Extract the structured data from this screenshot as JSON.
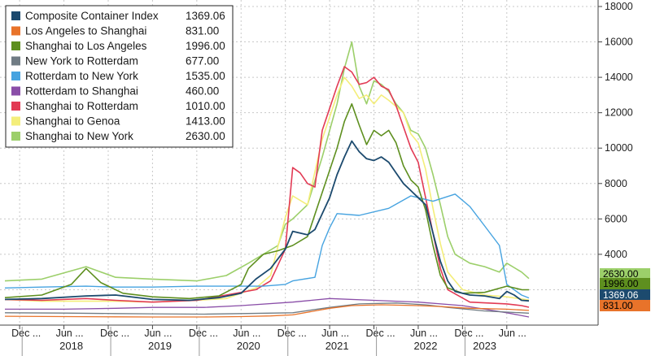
{
  "chart_data": {
    "type": "line",
    "title": "",
    "xlabel": "",
    "ylabel": "",
    "ylim": [
      0,
      18000
    ],
    "yticks": [
      4000,
      6000,
      8000,
      10000,
      12000,
      14000,
      16000,
      18000
    ],
    "y_axis_side": "right",
    "grid": true,
    "legend_position": "top-left",
    "x_range": [
      "2017-10",
      "2023-09"
    ],
    "x_month_labels": [
      {
        "date": "2017-12",
        "label": "Dec ..."
      },
      {
        "date": "2018-06",
        "label": "Jun ..."
      },
      {
        "date": "2018-12",
        "label": "Dec ..."
      },
      {
        "date": "2019-06",
        "label": "Jun ..."
      },
      {
        "date": "2019-12",
        "label": "Dec ..."
      },
      {
        "date": "2020-06",
        "label": "Jun ..."
      },
      {
        "date": "2020-12",
        "label": "Dec ..."
      },
      {
        "date": "2021-06",
        "label": "Jun ..."
      },
      {
        "date": "2021-12",
        "label": "Dec ..."
      },
      {
        "date": "2022-06",
        "label": "Jun ..."
      },
      {
        "date": "2022-12",
        "label": "Dec ..."
      },
      {
        "date": "2023-06",
        "label": "Jun ..."
      }
    ],
    "x_year_labels": [
      {
        "date": "2018-07",
        "label": "2018"
      },
      {
        "date": "2019-07",
        "label": "2019"
      },
      {
        "date": "2020-07",
        "label": "2020"
      },
      {
        "date": "2021-07",
        "label": "2021"
      },
      {
        "date": "2022-07",
        "label": "2022"
      },
      {
        "date": "2023-03",
        "label": "2023"
      }
    ],
    "year_separators": [
      "2018-01",
      "2019-01",
      "2020-01",
      "2021-01",
      "2022-01",
      "2023-01"
    ],
    "end_labels": [
      {
        "text": "2630.00",
        "bg": "#9ccf6a",
        "fg": "#000000"
      },
      {
        "text": "1996.00",
        "bg": "#5e8f1f",
        "fg": "#000000"
      },
      {
        "text": "1369.06",
        "bg": "#1c4a6e",
        "fg": "#ffffff"
      },
      {
        "text": "831.00",
        "bg": "#e8732a",
        "fg": "#000000"
      }
    ],
    "series": [
      {
        "name": "Composite Container Index",
        "value": "1369.06",
        "color": "#1c4a6e",
        "width": 1.8,
        "points": [
          [
            "2017-10",
            1450
          ],
          [
            "2018-03",
            1500
          ],
          [
            "2018-09",
            1650
          ],
          [
            "2019-01",
            1700
          ],
          [
            "2019-06",
            1450
          ],
          [
            "2019-11",
            1400
          ],
          [
            "2020-03",
            1550
          ],
          [
            "2020-06",
            1800
          ],
          [
            "2020-08",
            2600
          ],
          [
            "2020-10",
            3200
          ],
          [
            "2020-12",
            4300
          ],
          [
            "2021-01",
            5300
          ],
          [
            "2021-03",
            5100
          ],
          [
            "2021-04",
            5400
          ],
          [
            "2021-06",
            7200
          ],
          [
            "2021-07",
            8500
          ],
          [
            "2021-08",
            9500
          ],
          [
            "2021-09",
            10400
          ],
          [
            "2021-10",
            9800
          ],
          [
            "2021-11",
            9400
          ],
          [
            "2021-12",
            9300
          ],
          [
            "2022-01",
            9500
          ],
          [
            "2022-02",
            9200
          ],
          [
            "2022-03",
            8600
          ],
          [
            "2022-04",
            8000
          ],
          [
            "2022-05",
            7600
          ],
          [
            "2022-06",
            7200
          ],
          [
            "2022-07",
            6800
          ],
          [
            "2022-08",
            5200
          ],
          [
            "2022-09",
            3600
          ],
          [
            "2022-10",
            2500
          ],
          [
            "2022-11",
            1900
          ],
          [
            "2023-01",
            1700
          ],
          [
            "2023-03",
            1650
          ],
          [
            "2023-05",
            1500
          ],
          [
            "2023-06",
            1900
          ],
          [
            "2023-07",
            1700
          ],
          [
            "2023-08",
            1400
          ],
          [
            "2023-09",
            1369
          ]
        ]
      },
      {
        "name": "Los Angeles to Shanghai",
        "value": "831.00",
        "color": "#e8732a",
        "width": 1.3,
        "points": [
          [
            "2017-10",
            500
          ],
          [
            "2018-06",
            480
          ],
          [
            "2019-01",
            470
          ],
          [
            "2019-06",
            460
          ],
          [
            "2020-01",
            460
          ],
          [
            "2020-06",
            480
          ],
          [
            "2020-10",
            520
          ],
          [
            "2021-01",
            580
          ],
          [
            "2021-06",
            950
          ],
          [
            "2021-09",
            1100
          ],
          [
            "2022-01",
            1150
          ],
          [
            "2022-06",
            1100
          ],
          [
            "2022-09",
            1050
          ],
          [
            "2023-01",
            950
          ],
          [
            "2023-06",
            900
          ],
          [
            "2023-09",
            831
          ]
        ]
      },
      {
        "name": "Shanghai to Los Angeles",
        "value": "1996.00",
        "color": "#5e8f1f",
        "width": 1.6,
        "points": [
          [
            "2017-10",
            1550
          ],
          [
            "2018-03",
            1700
          ],
          [
            "2018-07",
            2300
          ],
          [
            "2018-09",
            3200
          ],
          [
            "2018-11",
            2400
          ],
          [
            "2019-02",
            1800
          ],
          [
            "2019-06",
            1600
          ],
          [
            "2019-11",
            1500
          ],
          [
            "2020-03",
            1650
          ],
          [
            "2020-06",
            2300
          ],
          [
            "2020-07",
            3200
          ],
          [
            "2020-09",
            4000
          ],
          [
            "2020-11",
            4200
          ],
          [
            "2021-01",
            4500
          ],
          [
            "2021-03",
            5000
          ],
          [
            "2021-05",
            7500
          ],
          [
            "2021-07",
            10000
          ],
          [
            "2021-08",
            11500
          ],
          [
            "2021-09",
            12500
          ],
          [
            "2021-10",
            11300
          ],
          [
            "2021-11",
            10200
          ],
          [
            "2021-12",
            11000
          ],
          [
            "2022-01",
            10700
          ],
          [
            "2022-02",
            11000
          ],
          [
            "2022-03",
            10300
          ],
          [
            "2022-04",
            9000
          ],
          [
            "2022-05",
            8200
          ],
          [
            "2022-06",
            7800
          ],
          [
            "2022-07",
            6500
          ],
          [
            "2022-08",
            4500
          ],
          [
            "2022-09",
            2800
          ],
          [
            "2022-10",
            2100
          ],
          [
            "2022-12",
            1800
          ],
          [
            "2023-03",
            1850
          ],
          [
            "2023-06",
            2200
          ],
          [
            "2023-08",
            2000
          ],
          [
            "2023-09",
            1996
          ]
        ]
      },
      {
        "name": "New York to Rotterdam",
        "value": "677.00",
        "color": "#707c84",
        "width": 1.3,
        "points": [
          [
            "2017-10",
            700
          ],
          [
            "2018-06",
            680
          ],
          [
            "2019-01",
            650
          ],
          [
            "2019-06",
            640
          ],
          [
            "2020-01",
            620
          ],
          [
            "2020-06",
            650
          ],
          [
            "2021-01",
            700
          ],
          [
            "2021-06",
            1000
          ],
          [
            "2021-10",
            1200
          ],
          [
            "2022-03",
            1250
          ],
          [
            "2022-07",
            1150
          ],
          [
            "2022-10",
            1000
          ],
          [
            "2023-03",
            800
          ],
          [
            "2023-09",
            677
          ]
        ]
      },
      {
        "name": "Rotterdam to New York",
        "value": "1535.00",
        "color": "#46a3e0",
        "width": 1.4,
        "points": [
          [
            "2017-10",
            2100
          ],
          [
            "2018-03",
            2150
          ],
          [
            "2018-09",
            2200
          ],
          [
            "2019-01",
            2150
          ],
          [
            "2019-06",
            2150
          ],
          [
            "2019-12",
            2200
          ],
          [
            "2020-04",
            2200
          ],
          [
            "2020-09",
            2200
          ],
          [
            "2020-12",
            2300
          ],
          [
            "2021-01",
            2500
          ],
          [
            "2021-04",
            2700
          ],
          [
            "2021-05",
            4500
          ],
          [
            "2021-06",
            5500
          ],
          [
            "2021-07",
            6300
          ],
          [
            "2021-10",
            6200
          ],
          [
            "2022-02",
            6600
          ],
          [
            "2022-05",
            7300
          ],
          [
            "2022-08",
            7000
          ],
          [
            "2022-11",
            7400
          ],
          [
            "2023-01",
            6700
          ],
          [
            "2023-03",
            5600
          ],
          [
            "2023-05",
            4500
          ],
          [
            "2023-06",
            2300
          ],
          [
            "2023-08",
            1700
          ],
          [
            "2023-09",
            1535
          ]
        ]
      },
      {
        "name": "Rotterdam to Shanghai",
        "value": "460.00",
        "color": "#8a4ea8",
        "width": 1.3,
        "points": [
          [
            "2017-10",
            900
          ],
          [
            "2018-06",
            900
          ],
          [
            "2019-01",
            950
          ],
          [
            "2019-06",
            1000
          ],
          [
            "2020-01",
            1000
          ],
          [
            "2020-06",
            1100
          ],
          [
            "2021-01",
            1300
          ],
          [
            "2021-06",
            1500
          ],
          [
            "2021-12",
            1400
          ],
          [
            "2022-06",
            1300
          ],
          [
            "2022-12",
            1100
          ],
          [
            "2023-06",
            700
          ],
          [
            "2023-09",
            460
          ]
        ]
      },
      {
        "name": "Shanghai to Rotterdam",
        "value": "1010.00",
        "color": "#e23a54",
        "width": 1.6,
        "points": [
          [
            "2017-10",
            1450
          ],
          [
            "2018-03",
            1400
          ],
          [
            "2018-09",
            1500
          ],
          [
            "2019-01",
            1400
          ],
          [
            "2019-06",
            1300
          ],
          [
            "2019-12",
            1400
          ],
          [
            "2020-04",
            1700
          ],
          [
            "2020-08",
            2000
          ],
          [
            "2020-10",
            2500
          ],
          [
            "2020-12",
            4300
          ],
          [
            "2021-01",
            8900
          ],
          [
            "2021-02",
            8600
          ],
          [
            "2021-03",
            8000
          ],
          [
            "2021-04",
            7800
          ],
          [
            "2021-05",
            11000
          ],
          [
            "2021-07",
            13500
          ],
          [
            "2021-08",
            14600
          ],
          [
            "2021-09",
            14300
          ],
          [
            "2021-10",
            13600
          ],
          [
            "2021-11",
            13700
          ],
          [
            "2021-12",
            14000
          ],
          [
            "2022-01",
            13500
          ],
          [
            "2022-02",
            13300
          ],
          [
            "2022-03",
            12400
          ],
          [
            "2022-04",
            11200
          ],
          [
            "2022-05",
            10000
          ],
          [
            "2022-06",
            9200
          ],
          [
            "2022-07",
            7200
          ],
          [
            "2022-08",
            5200
          ],
          [
            "2022-09",
            3200
          ],
          [
            "2022-10",
            2000
          ],
          [
            "2023-01",
            1300
          ],
          [
            "2023-06",
            1200
          ],
          [
            "2023-08",
            1100
          ],
          [
            "2023-09",
            1010
          ]
        ]
      },
      {
        "name": "Shanghai to Genoa",
        "value": "1413.00",
        "color": "#f4ee7a",
        "width": 1.6,
        "points": [
          [
            "2017-10",
            1450
          ],
          [
            "2018-03",
            1350
          ],
          [
            "2018-09",
            1350
          ],
          [
            "2019-01",
            1350
          ],
          [
            "2019-06",
            1300
          ],
          [
            "2019-12",
            1400
          ],
          [
            "2020-04",
            1500
          ],
          [
            "2020-08",
            2100
          ],
          [
            "2020-10",
            2800
          ],
          [
            "2020-12",
            6100
          ],
          [
            "2021-01",
            7300
          ],
          [
            "2021-03",
            6800
          ],
          [
            "2021-05",
            10500
          ],
          [
            "2021-07",
            13000
          ],
          [
            "2021-08",
            14000
          ],
          [
            "2021-09",
            13500
          ],
          [
            "2021-10",
            12800
          ],
          [
            "2021-11",
            13000
          ],
          [
            "2021-12",
            12500
          ],
          [
            "2022-01",
            13000
          ],
          [
            "2022-02",
            12700
          ],
          [
            "2022-04",
            12000
          ],
          [
            "2022-05",
            10800
          ],
          [
            "2022-06",
            10300
          ],
          [
            "2022-07",
            8800
          ],
          [
            "2022-08",
            6600
          ],
          [
            "2022-09",
            4600
          ],
          [
            "2022-10",
            3000
          ],
          [
            "2022-12",
            2000
          ],
          [
            "2023-03",
            1700
          ],
          [
            "2023-06",
            1600
          ],
          [
            "2023-09",
            1413
          ]
        ]
      },
      {
        "name": "Shanghai to New York",
        "value": "2630.00",
        "color": "#9ccf6a",
        "width": 1.6,
        "points": [
          [
            "2017-10",
            2500
          ],
          [
            "2018-03",
            2600
          ],
          [
            "2018-09",
            3300
          ],
          [
            "2019-01",
            2700
          ],
          [
            "2019-06",
            2600
          ],
          [
            "2019-12",
            2500
          ],
          [
            "2020-04",
            2800
          ],
          [
            "2020-07",
            3500
          ],
          [
            "2020-09",
            4000
          ],
          [
            "2020-11",
            4500
          ],
          [
            "2020-12",
            5700
          ],
          [
            "2021-01",
            6000
          ],
          [
            "2021-03",
            6800
          ],
          [
            "2021-05",
            9500
          ],
          [
            "2021-07",
            12500
          ],
          [
            "2021-08",
            14500
          ],
          [
            "2021-09",
            16000
          ],
          [
            "2021-10",
            13500
          ],
          [
            "2021-11",
            12500
          ],
          [
            "2021-12",
            13800
          ],
          [
            "2022-01",
            13600
          ],
          [
            "2022-02",
            13200
          ],
          [
            "2022-03",
            12500
          ],
          [
            "2022-04",
            12000
          ],
          [
            "2022-05",
            11000
          ],
          [
            "2022-06",
            10800
          ],
          [
            "2022-07",
            10000
          ],
          [
            "2022-08",
            8500
          ],
          [
            "2022-09",
            6800
          ],
          [
            "2022-10",
            5000
          ],
          [
            "2022-11",
            4000
          ],
          [
            "2023-01",
            3500
          ],
          [
            "2023-03",
            3300
          ],
          [
            "2023-05",
            3000
          ],
          [
            "2023-06",
            3500
          ],
          [
            "2023-08",
            3000
          ],
          [
            "2023-09",
            2630
          ]
        ]
      }
    ]
  }
}
